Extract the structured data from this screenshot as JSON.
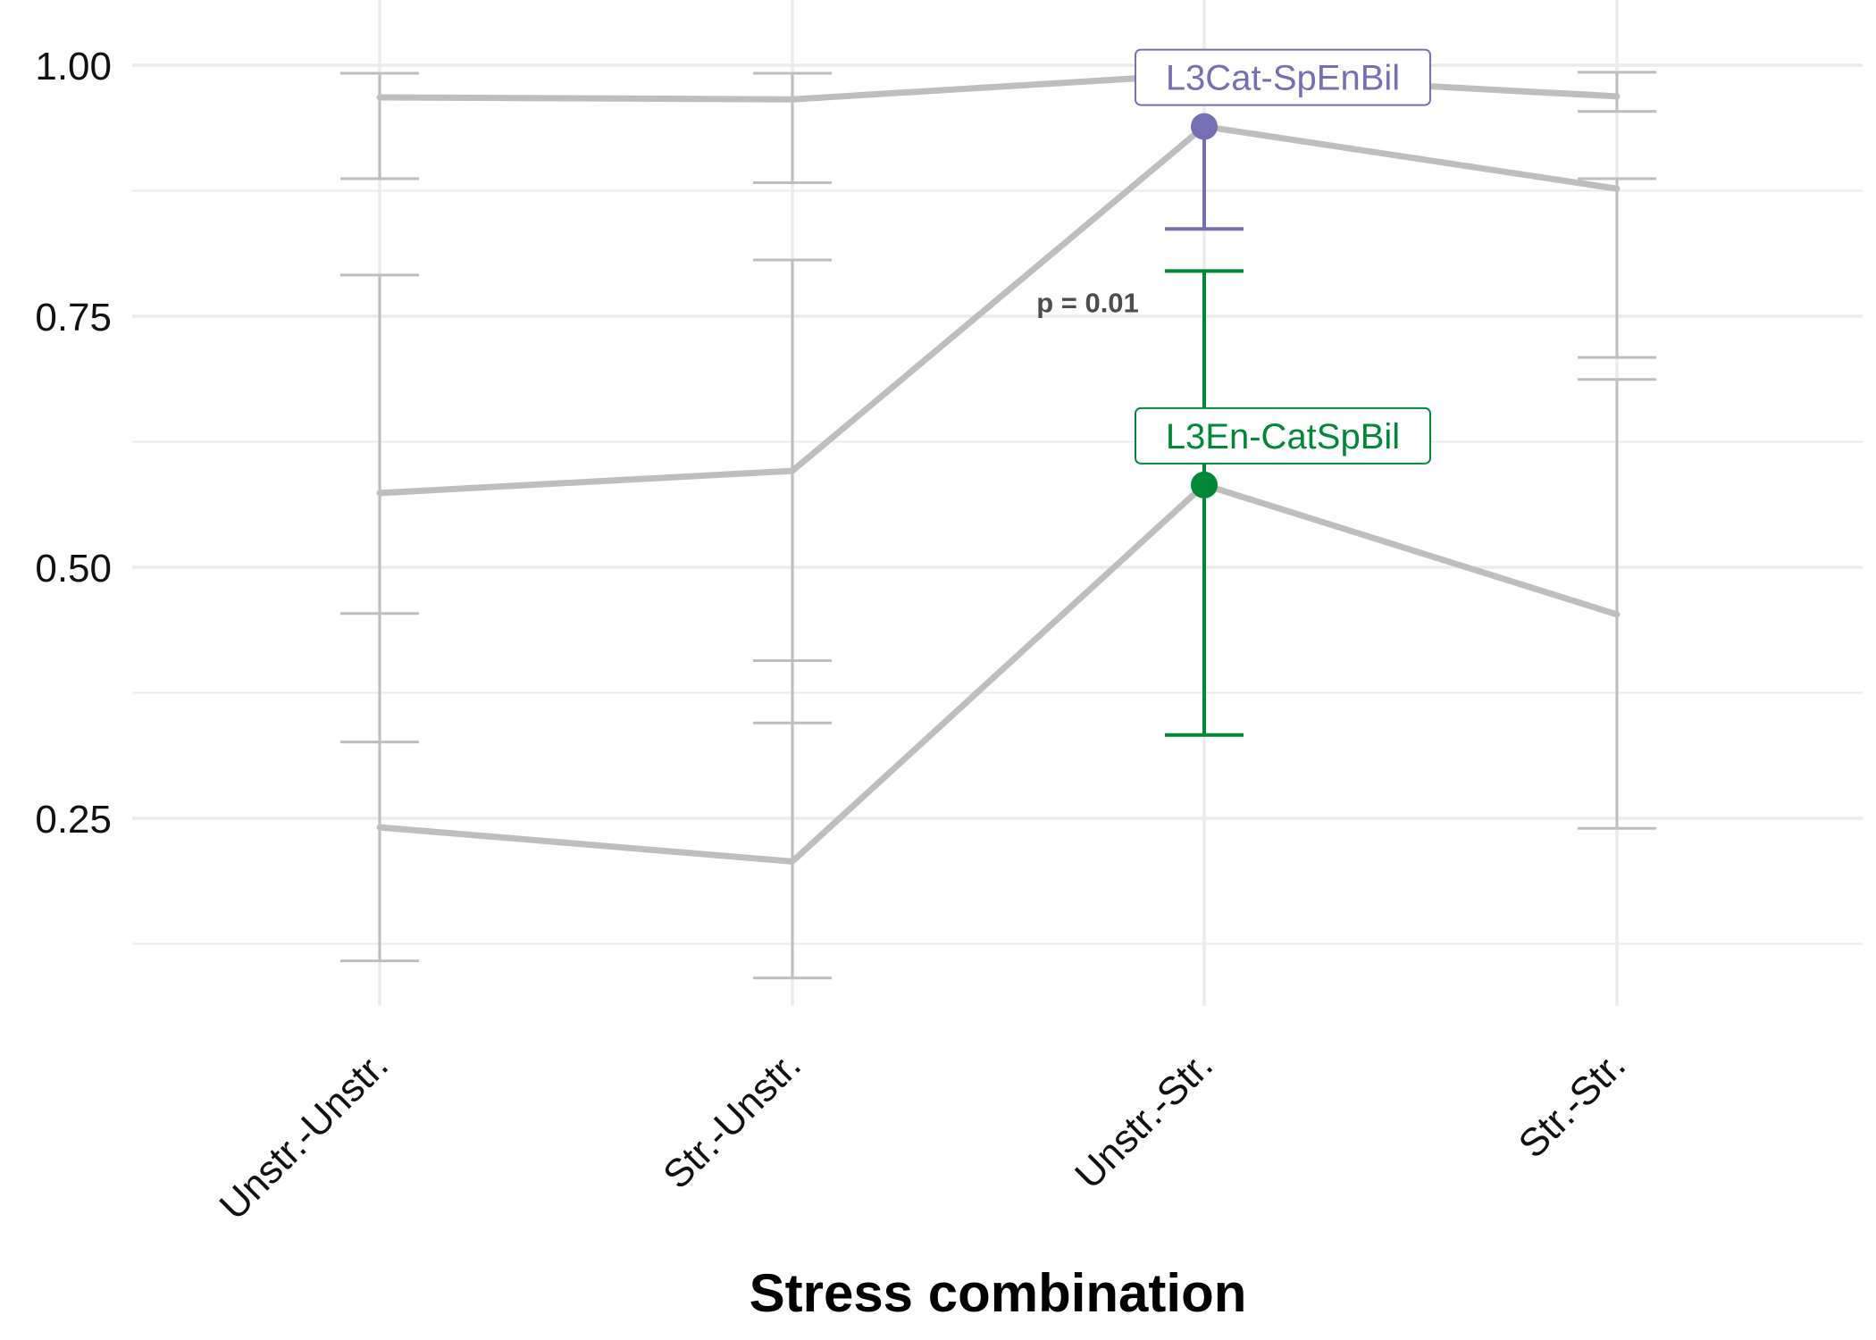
{
  "chart_data": {
    "type": "line",
    "title": "",
    "xlabel": "Stress combination",
    "ylabel": "",
    "categories": [
      "Unstr.-Unstr.",
      "Str.-Unstr.",
      "Unstr.-Str.",
      "Str.-Str."
    ],
    "ylim": [
      0.09,
      1.04
    ],
    "yticks": [
      0.25,
      0.5,
      0.75,
      1.0
    ],
    "ytick_labels": [
      "0.25",
      "0.50",
      "0.75",
      "1.00"
    ],
    "yminor": [
      0.125,
      0.375,
      0.625,
      0.875
    ],
    "grid": true,
    "legend": "none",
    "series": [
      {
        "values": [
          0.968,
          0.966,
          0.991,
          0.969
        ],
        "lower": [
          0.887,
          0.883,
          0.991,
          0.954
        ],
        "upper": [
          0.992,
          0.992,
          0.991,
          0.993
        ]
      },
      {
        "name": "L3Cat-SpEnBil",
        "values": [
          0.574,
          0.596,
          0.939,
          0.877
        ],
        "lower": [
          0.326,
          0.345,
          0.837,
          0.709
        ],
        "upper": [
          0.791,
          0.806,
          0.939,
          0.887
        ]
      },
      {
        "name": "L3En-CatSpBil",
        "values": [
          0.241,
          0.207,
          0.582,
          0.453
        ],
        "lower": [
          0.108,
          0.091,
          0.333,
          0.24
        ],
        "upper": [
          0.454,
          0.407,
          0.795,
          0.687
        ]
      }
    ],
    "highlight": {
      "category_index": 2,
      "points": [
        {
          "series_index": 1,
          "label": "L3Cat-SpEnBil",
          "color": "#7570b3"
        },
        {
          "series_index": 2,
          "label": "L3En-CatSpBil",
          "color": "#008837"
        }
      ]
    },
    "annotation": {
      "text": "p = 0.01",
      "x_between": [
        1,
        2
      ],
      "y": 0.77
    },
    "colors": {
      "grey_series": "#bebebe",
      "grid": "#ebebeb"
    }
  }
}
